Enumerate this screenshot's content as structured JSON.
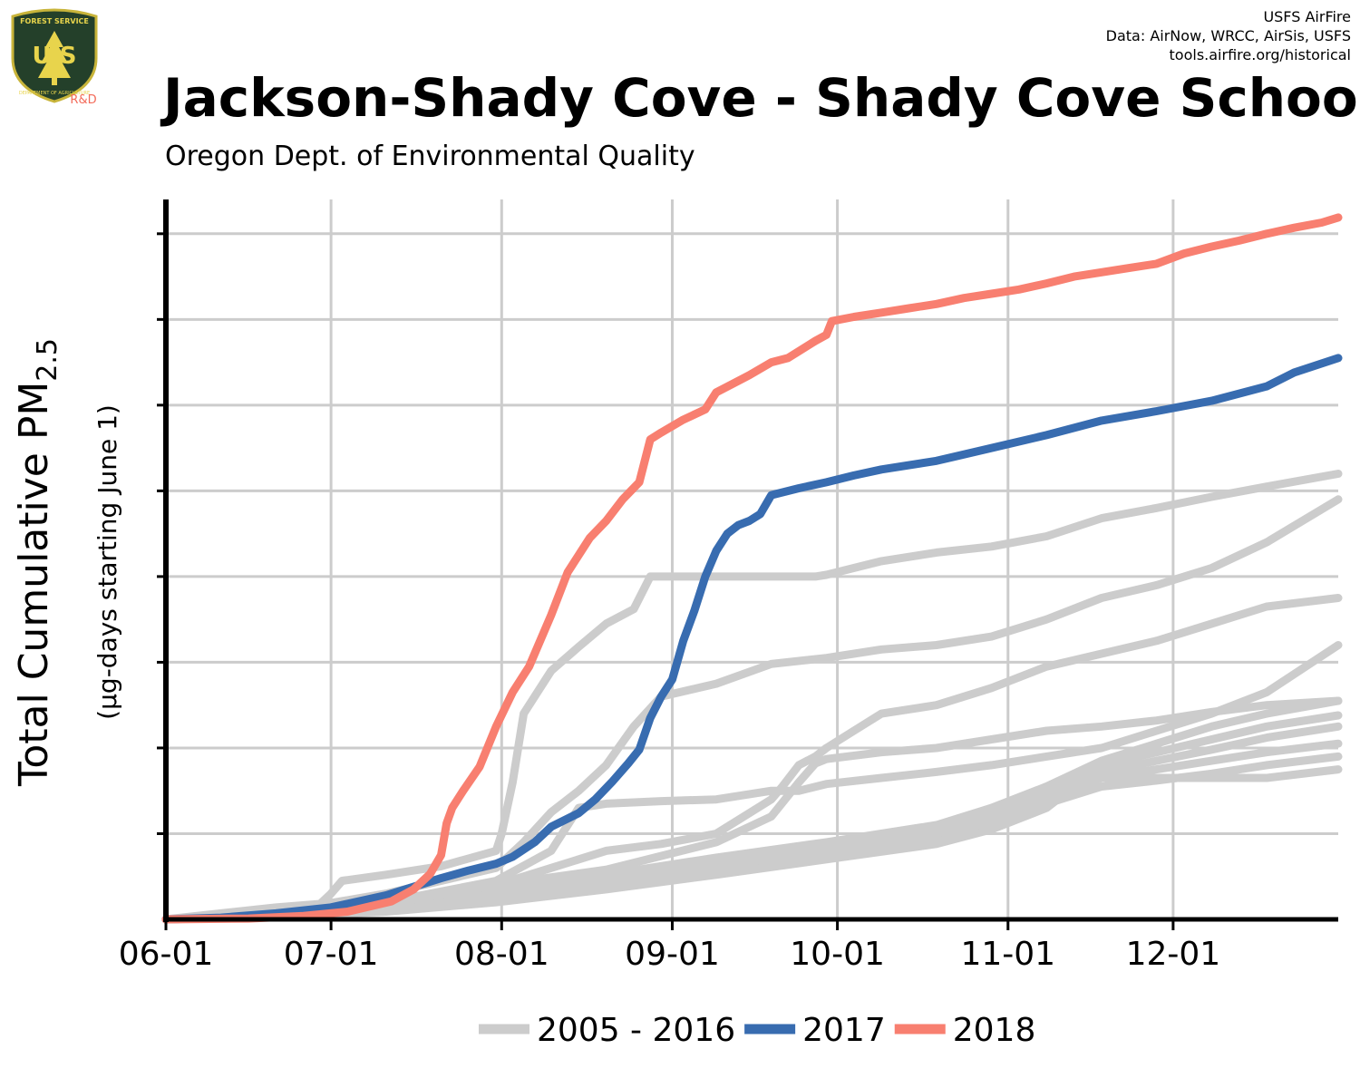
{
  "header": {
    "title": "Jackson-Shady Cove - Shady Cove School",
    "subtitle": "Oregon Dept. of Environmental Quality",
    "credit_line1": "USFS AirFire",
    "credit_line2": "Data: AirNow, WRCC, AirSis, USFS",
    "credit_line3": "tools.airfire.org/historical"
  },
  "logo": {
    "top_text": "FOREST SERVICE",
    "bottom_text": "DEPARTMENT OF AGRICULTURE",
    "letters": "U S",
    "tag": "R&D",
    "colors": {
      "shield": "#24402a",
      "rim": "#c8b43a",
      "text": "#e8d44c",
      "tag": "#f36b5a"
    }
  },
  "chart_data": {
    "type": "line",
    "ylabel_main": "Total Cumulative PM",
    "ylabel_subscript": "2.5",
    "ylabel_sub": "(µg-days starting June 1)",
    "x_ticks": [
      {
        "label": "06-01",
        "day": 0
      },
      {
        "label": "07-01",
        "day": 30
      },
      {
        "label": "08-01",
        "day": 61
      },
      {
        "label": "09-01",
        "day": 92
      },
      {
        "label": "10-01",
        "day": 122
      },
      {
        "label": "11-01",
        "day": 153
      },
      {
        "label": "12-01",
        "day": 183
      }
    ],
    "x_range_days": [
      0,
      213
    ],
    "y_range": [
      0,
      8.4
    ],
    "y_gridlines": 8,
    "y_tick_labels_shown": false,
    "grid": true,
    "legend_position": "bottom",
    "legend": [
      {
        "label": "2005 - 2016",
        "color": "#cccccc"
      },
      {
        "label": "2017",
        "color": "#386cb0"
      },
      {
        "label": "2018",
        "color": "#f87f70"
      }
    ],
    "series": [
      {
        "name": "2018",
        "color": "#f87f70",
        "x": [
          0,
          15,
          25,
          33,
          41,
          45,
          48,
          50,
          51,
          52,
          54,
          57,
          60,
          63,
          66,
          70,
          73,
          77,
          80,
          83,
          86,
          88,
          90,
          94,
          98,
          100,
          103,
          106,
          110,
          113,
          118,
          120,
          121,
          125,
          130,
          135,
          140,
          145,
          150,
          155,
          160,
          165,
          170,
          175,
          180,
          185,
          190,
          195,
          200,
          205,
          210,
          213
        ],
        "y": [
          0,
          0.01,
          0.04,
          0.09,
          0.21,
          0.35,
          0.53,
          0.75,
          1.12,
          1.3,
          1.5,
          1.78,
          2.25,
          2.65,
          2.95,
          3.55,
          4.05,
          4.45,
          4.65,
          4.9,
          5.1,
          5.6,
          5.68,
          5.83,
          5.95,
          6.15,
          6.25,
          6.35,
          6.5,
          6.55,
          6.75,
          6.82,
          6.98,
          7.03,
          7.08,
          7.13,
          7.18,
          7.25,
          7.3,
          7.35,
          7.42,
          7.5,
          7.55,
          7.6,
          7.65,
          7.77,
          7.85,
          7.92,
          8.0,
          8.07,
          8.13,
          8.19
        ]
      },
      {
        "name": "2017",
        "color": "#386cb0",
        "x": [
          0,
          10,
          20,
          30,
          40,
          45,
          50,
          55,
          60,
          63,
          67,
          70,
          75,
          78,
          81,
          84,
          86,
          88,
          90,
          92,
          94,
          96,
          98,
          100,
          102,
          104,
          106,
          108,
          110,
          115,
          120,
          125,
          130,
          140,
          150,
          160,
          170,
          180,
          190,
          200,
          205,
          213
        ],
        "y": [
          0,
          0.02,
          0.07,
          0.14,
          0.28,
          0.38,
          0.48,
          0.57,
          0.65,
          0.73,
          0.9,
          1.08,
          1.24,
          1.4,
          1.6,
          1.82,
          1.98,
          2.35,
          2.6,
          2.8,
          3.25,
          3.6,
          4.0,
          4.3,
          4.5,
          4.6,
          4.65,
          4.73,
          4.95,
          5.03,
          5.1,
          5.18,
          5.25,
          5.35,
          5.5,
          5.65,
          5.82,
          5.93,
          6.05,
          6.22,
          6.38,
          6.55
        ]
      },
      {
        "name": "2005 - 2016",
        "color": "#cccccc",
        "x": [
          0,
          20,
          28,
          30,
          32,
          40,
          50,
          60,
          61,
          63,
          65,
          70,
          75,
          80,
          85,
          88,
          90,
          100,
          110,
          115,
          118,
          120,
          130,
          140,
          150,
          160,
          170,
          180,
          190,
          200,
          213
        ],
        "y": [
          0,
          0.14,
          0.18,
          0.3,
          0.45,
          0.52,
          0.62,
          0.8,
          1.0,
          1.6,
          2.4,
          2.9,
          3.18,
          3.45,
          3.62,
          4.0,
          4.0,
          4.0,
          4.0,
          4.0,
          4.0,
          4.02,
          4.18,
          4.28,
          4.35,
          4.47,
          4.68,
          4.8,
          4.93,
          5.05,
          5.2
        ]
      },
      {
        "name": "2005 - 2016",
        "color": "#cccccc",
        "x": [
          0,
          20,
          40,
          60,
          65,
          70,
          75,
          80,
          85,
          90,
          100,
          110,
          120,
          130,
          140,
          150,
          160,
          170,
          180,
          190,
          200,
          213
        ],
        "y": [
          0,
          0.08,
          0.3,
          0.6,
          0.9,
          1.25,
          1.5,
          1.8,
          2.25,
          2.6,
          2.75,
          2.98,
          3.05,
          3.15,
          3.2,
          3.3,
          3.5,
          3.75,
          3.9,
          4.1,
          4.4,
          4.9
        ]
      },
      {
        "name": "2005 - 2016",
        "color": "#cccccc",
        "x": [
          0,
          20,
          40,
          60,
          70,
          80,
          90,
          100,
          110,
          112,
          115,
          118,
          120,
          125,
          130,
          140,
          150,
          160,
          170,
          180,
          190,
          200,
          213
        ],
        "y": [
          0,
          0.06,
          0.18,
          0.4,
          0.6,
          0.8,
          0.88,
          1.0,
          1.4,
          1.55,
          1.8,
          1.9,
          2.0,
          2.2,
          2.4,
          2.5,
          2.7,
          2.95,
          3.1,
          3.25,
          3.45,
          3.65,
          3.75
        ]
      },
      {
        "name": "2005 - 2016",
        "color": "#cccccc",
        "x": [
          0,
          20,
          40,
          60,
          70,
          75,
          80,
          90,
          100,
          110,
          115,
          120,
          130,
          140,
          150,
          160,
          170,
          180,
          190,
          200,
          213
        ],
        "y": [
          0,
          0.07,
          0.2,
          0.45,
          0.8,
          1.3,
          1.35,
          1.38,
          1.4,
          1.5,
          1.5,
          1.58,
          1.65,
          1.72,
          1.8,
          1.9,
          2.0,
          2.2,
          2.4,
          2.65,
          3.2
        ]
      },
      {
        "name": "2005 - 2016",
        "color": "#cccccc",
        "x": [
          0,
          20,
          40,
          60,
          80,
          100,
          110,
          115,
          118,
          120,
          130,
          140,
          150,
          160,
          170,
          180,
          190,
          200,
          213
        ],
        "y": [
          0,
          0.06,
          0.18,
          0.4,
          0.58,
          0.9,
          1.2,
          1.6,
          1.82,
          1.87,
          1.95,
          2.0,
          2.1,
          2.2,
          2.25,
          2.32,
          2.42,
          2.5,
          2.55
        ]
      },
      {
        "name": "2005 - 2016",
        "color": "#cccccc",
        "x": [
          0,
          20,
          40,
          60,
          80,
          100,
          120,
          140,
          150,
          160,
          170,
          180,
          190,
          200,
          213
        ],
        "y": [
          0,
          0.05,
          0.14,
          0.32,
          0.52,
          0.72,
          0.9,
          1.1,
          1.3,
          1.55,
          1.85,
          2.05,
          2.25,
          2.4,
          2.55
        ]
      },
      {
        "name": "2005 - 2016",
        "color": "#cccccc",
        "x": [
          0,
          20,
          40,
          60,
          80,
          100,
          120,
          140,
          150,
          160,
          170,
          180,
          190,
          200,
          213
        ],
        "y": [
          0,
          0.05,
          0.14,
          0.3,
          0.48,
          0.68,
          0.85,
          1.05,
          1.25,
          1.5,
          1.8,
          1.95,
          2.1,
          2.25,
          2.38
        ]
      },
      {
        "name": "2005 - 2016",
        "color": "#cccccc",
        "x": [
          0,
          20,
          40,
          60,
          80,
          100,
          120,
          140,
          150,
          160,
          170,
          180,
          190,
          200,
          213
        ],
        "y": [
          0,
          0.04,
          0.12,
          0.28,
          0.45,
          0.62,
          0.8,
          1.0,
          1.2,
          1.45,
          1.72,
          1.85,
          1.98,
          2.12,
          2.25
        ]
      },
      {
        "name": "2005 - 2016",
        "color": "#cccccc",
        "x": [
          0,
          20,
          40,
          60,
          80,
          100,
          120,
          140,
          150,
          160,
          170,
          180,
          190,
          200,
          213
        ],
        "y": [
          0,
          0.04,
          0.11,
          0.25,
          0.42,
          0.58,
          0.77,
          0.95,
          1.15,
          1.4,
          1.65,
          1.75,
          1.85,
          1.95,
          2.05
        ]
      },
      {
        "name": "2005 - 2016",
        "color": "#cccccc",
        "x": [
          0,
          20,
          40,
          60,
          80,
          100,
          120,
          140,
          150,
          160,
          170,
          180,
          190,
          200,
          213
        ],
        "y": [
          0,
          0.04,
          0.1,
          0.23,
          0.4,
          0.55,
          0.75,
          0.92,
          1.1,
          1.35,
          1.55,
          1.62,
          1.7,
          1.8,
          1.9
        ]
      },
      {
        "name": "2005 - 2016",
        "color": "#cccccc",
        "x": [
          0,
          20,
          40,
          60,
          80,
          100,
          120,
          140,
          150,
          160,
          165,
          170,
          180,
          190,
          200,
          213
        ],
        "y": [
          0,
          0.03,
          0.09,
          0.2,
          0.35,
          0.52,
          0.7,
          0.88,
          1.05,
          1.3,
          1.55,
          1.65,
          1.65,
          1.65,
          1.65,
          1.75
        ]
      }
    ]
  }
}
